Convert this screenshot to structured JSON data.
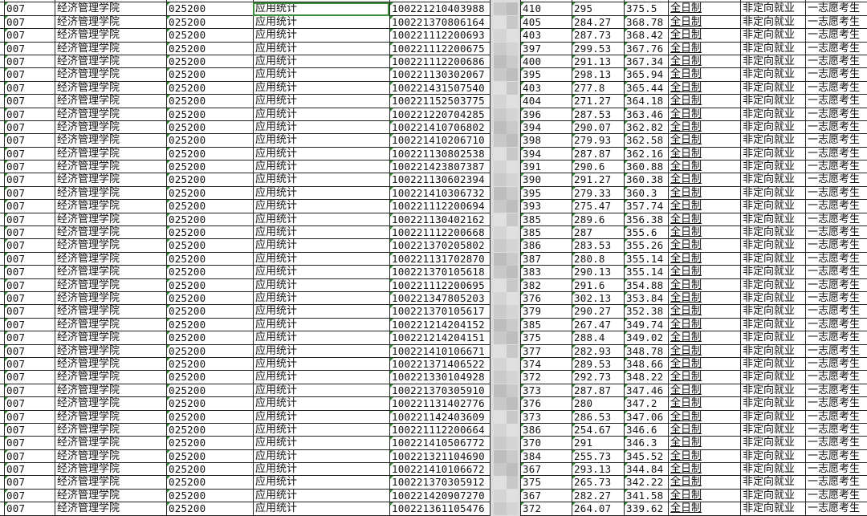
{
  "sheet": {
    "selected_cell": {
      "row": 0,
      "column": "major"
    },
    "accent_color": "#3c8d3c",
    "columns": [
      "dept_code",
      "dept_name",
      "major_code",
      "major_name",
      "exam_id",
      "name",
      "prelim_score",
      "retest_score",
      "total_score",
      "study_mode",
      "employment_type",
      "volunteer_type"
    ],
    "rows": [
      [
        "007",
        "经济管理学院",
        "025200",
        "应用统计",
        "100221210403988",
        "",
        "410",
        "295",
        "375.5",
        "全日制",
        "非定向就业",
        "一志愿考生"
      ],
      [
        "007",
        "经济管理学院",
        "025200",
        "应用统计",
        "100221370806164",
        "",
        "405",
        "284.27",
        "368.78",
        "全日制",
        "非定向就业",
        "一志愿考生"
      ],
      [
        "007",
        "经济管理学院",
        "025200",
        "应用统计",
        "100221112200693",
        "",
        "403",
        "287.73",
        "368.42",
        "全日制",
        "非定向就业",
        "一志愿考生"
      ],
      [
        "007",
        "经济管理学院",
        "025200",
        "应用统计",
        "100221112200675",
        "",
        "397",
        "299.53",
        "367.76",
        "全日制",
        "非定向就业",
        "一志愿考生"
      ],
      [
        "007",
        "经济管理学院",
        "025200",
        "应用统计",
        "100221112200686",
        "",
        "400",
        "291.13",
        "367.34",
        "全日制",
        "非定向就业",
        "一志愿考生"
      ],
      [
        "007",
        "经济管理学院",
        "025200",
        "应用统计",
        "100221130302067",
        "",
        "395",
        "298.13",
        "365.94",
        "全日制",
        "非定向就业",
        "一志愿考生"
      ],
      [
        "007",
        "经济管理学院",
        "025200",
        "应用统计",
        "100221431507540",
        "",
        "403",
        "277.8",
        "365.44",
        "全日制",
        "非定向就业",
        "一志愿考生"
      ],
      [
        "007",
        "经济管理学院",
        "025200",
        "应用统计",
        "100221152503775",
        "",
        "404",
        "271.27",
        "364.18",
        "全日制",
        "非定向就业",
        "一志愿考生"
      ],
      [
        "007",
        "经济管理学院",
        "025200",
        "应用统计",
        "100221220704285",
        "",
        "396",
        "287.53",
        "363.46",
        "全日制",
        "非定向就业",
        "一志愿考生"
      ],
      [
        "007",
        "经济管理学院",
        "025200",
        "应用统计",
        "100221410706802",
        "",
        "394",
        "290.07",
        "362.82",
        "全日制",
        "非定向就业",
        "一志愿考生"
      ],
      [
        "007",
        "经济管理学院",
        "025200",
        "应用统计",
        "100221410206710",
        "",
        "398",
        "279.93",
        "362.58",
        "全日制",
        "非定向就业",
        "一志愿考生"
      ],
      [
        "007",
        "经济管理学院",
        "025200",
        "应用统计",
        "100221130802538",
        "",
        "394",
        "287.87",
        "362.16",
        "全日制",
        "非定向就业",
        "一志愿考生"
      ],
      [
        "007",
        "经济管理学院",
        "025200",
        "应用统计",
        "100221423807387",
        "",
        "391",
        "290.6",
        "360.88",
        "全日制",
        "非定向就业",
        "一志愿考生"
      ],
      [
        "007",
        "经济管理学院",
        "025200",
        "应用统计",
        "100221130602394",
        "",
        "390",
        "291.27",
        "360.38",
        "全日制",
        "非定向就业",
        "一志愿考生"
      ],
      [
        "007",
        "经济管理学院",
        "025200",
        "应用统计",
        "100221410306732",
        "",
        "395",
        "279.33",
        "360.3",
        "全日制",
        "非定向就业",
        "一志愿考生"
      ],
      [
        "007",
        "经济管理学院",
        "025200",
        "应用统计",
        "100221112200694",
        "",
        "393",
        "275.47",
        "357.74",
        "全日制",
        "非定向就业",
        "一志愿考生"
      ],
      [
        "007",
        "经济管理学院",
        "025200",
        "应用统计",
        "100221130402162",
        "",
        "385",
        "289.6",
        "356.38",
        "全日制",
        "非定向就业",
        "一志愿考生"
      ],
      [
        "007",
        "经济管理学院",
        "025200",
        "应用统计",
        "100221112200668",
        "",
        "385",
        "287",
        "355.6",
        "全日制",
        "非定向就业",
        "一志愿考生"
      ],
      [
        "007",
        "经济管理学院",
        "025200",
        "应用统计",
        "100221370205802",
        "",
        "386",
        "283.53",
        "355.26",
        "全日制",
        "非定向就业",
        "一志愿考生"
      ],
      [
        "007",
        "经济管理学院",
        "025200",
        "应用统计",
        "100221131702870",
        "",
        "387",
        "280.8",
        "355.14",
        "全日制",
        "非定向就业",
        "一志愿考生"
      ],
      [
        "007",
        "经济管理学院",
        "025200",
        "应用统计",
        "100221370105618",
        "",
        "383",
        "290.13",
        "355.14",
        "全日制",
        "非定向就业",
        "一志愿考生"
      ],
      [
        "007",
        "经济管理学院",
        "025200",
        "应用统计",
        "100221112200695",
        "",
        "382",
        "291.6",
        "354.88",
        "全日制",
        "非定向就业",
        "一志愿考生"
      ],
      [
        "007",
        "经济管理学院",
        "025200",
        "应用统计",
        "100221347805203",
        "",
        "376",
        "302.13",
        "353.84",
        "全日制",
        "非定向就业",
        "一志愿考生"
      ],
      [
        "007",
        "经济管理学院",
        "025200",
        "应用统计",
        "100221370105617",
        "",
        "379",
        "290.27",
        "352.38",
        "全日制",
        "非定向就业",
        "一志愿考生"
      ],
      [
        "007",
        "经济管理学院",
        "025200",
        "应用统计",
        "100221214204152",
        "",
        "385",
        "267.47",
        "349.74",
        "全日制",
        "非定向就业",
        "一志愿考生"
      ],
      [
        "007",
        "经济管理学院",
        "025200",
        "应用统计",
        "100221214204151",
        "",
        "375",
        "288.4",
        "349.02",
        "全日制",
        "非定向就业",
        "一志愿考生"
      ],
      [
        "007",
        "经济管理学院",
        "025200",
        "应用统计",
        "100221410106671",
        "",
        "377",
        "282.93",
        "348.78",
        "全日制",
        "非定向就业",
        "一志愿考生"
      ],
      [
        "007",
        "经济管理学院",
        "025200",
        "应用统计",
        "100221371406522",
        "",
        "374",
        "289.53",
        "348.66",
        "全日制",
        "非定向就业",
        "一志愿考生"
      ],
      [
        "007",
        "经济管理学院",
        "025200",
        "应用统计",
        "100221330104928",
        "",
        "372",
        "292.73",
        "348.22",
        "全日制",
        "非定向就业",
        "一志愿考生"
      ],
      [
        "007",
        "经济管理学院",
        "025200",
        "应用统计",
        "100221370305910",
        "",
        "373",
        "287.87",
        "347.46",
        "全日制",
        "非定向就业",
        "一志愿考生"
      ],
      [
        "007",
        "经济管理学院",
        "025200",
        "应用统计",
        "100221131402776",
        "",
        "376",
        "280",
        "347.2",
        "全日制",
        "非定向就业",
        "一志愿考生"
      ],
      [
        "007",
        "经济管理学院",
        "025200",
        "应用统计",
        "100221142403609",
        "",
        "373",
        "286.53",
        "347.06",
        "全日制",
        "非定向就业",
        "一志愿考生"
      ],
      [
        "007",
        "经济管理学院",
        "025200",
        "应用统计",
        "100221112200664",
        "",
        "386",
        "254.67",
        "346.6",
        "全日制",
        "非定向就业",
        "一志愿考生"
      ],
      [
        "007",
        "经济管理学院",
        "025200",
        "应用统计",
        "100221410506772",
        "",
        "370",
        "291",
        "346.3",
        "全日制",
        "非定向就业",
        "一志愿考生"
      ],
      [
        "007",
        "经济管理学院",
        "025200",
        "应用统计",
        "100221321104690",
        "",
        "384",
        "255.73",
        "345.52",
        "全日制",
        "非定向就业",
        "一志愿考生"
      ],
      [
        "007",
        "经济管理学院",
        "025200",
        "应用统计",
        "100221410106672",
        "",
        "367",
        "293.13",
        "344.84",
        "全日制",
        "非定向就业",
        "一志愿考生"
      ],
      [
        "007",
        "经济管理学院",
        "025200",
        "应用统计",
        "100221370305912",
        "",
        "375",
        "265.73",
        "342.22",
        "全日制",
        "非定向就业",
        "一志愿考生"
      ],
      [
        "007",
        "经济管理学院",
        "025200",
        "应用统计",
        "100221420907270",
        "",
        "367",
        "282.27",
        "341.58",
        "全日制",
        "非定向就业",
        "一志愿考生"
      ],
      [
        "007",
        "经济管理学院",
        "025200",
        "应用统计",
        "100221361105476",
        "",
        "372",
        "264.07",
        "339.62",
        "全日制",
        "非定向就业",
        "一志愿考生"
      ]
    ]
  }
}
